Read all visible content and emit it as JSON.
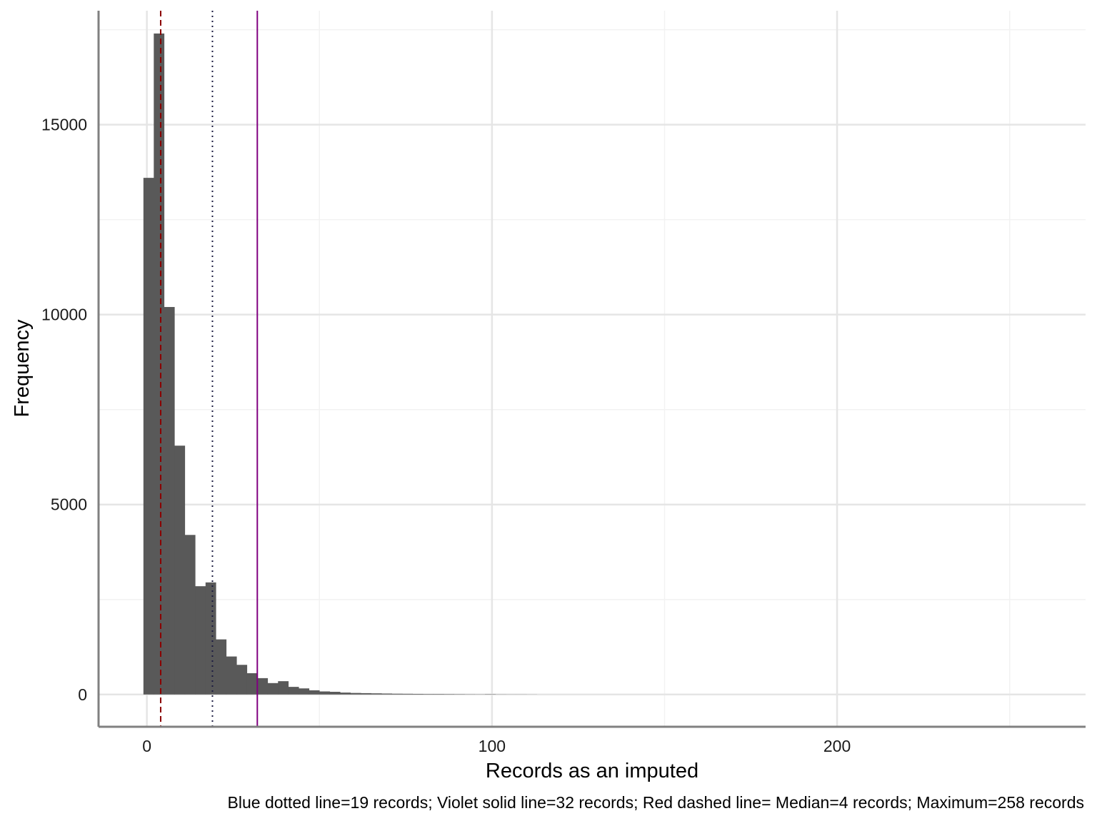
{
  "chart_data": {
    "type": "bar",
    "subtype": "histogram",
    "title": "",
    "xlabel": "Records as an imputed",
    "ylabel": "Frequency",
    "caption": "Blue dotted line=19 records; Violet solid line=32 records; Red dashed line= Median=4 records; Maximum=258 records",
    "xlim": [
      -14,
      272
    ],
    "ylim": [
      -850,
      18000
    ],
    "x_ticks": [
      0,
      100,
      200
    ],
    "x_tick_labels": [
      "0",
      "100",
      "200"
    ],
    "y_ticks": [
      0,
      5000,
      10000,
      15000
    ],
    "y_tick_labels": [
      "0",
      "5000",
      "10000",
      "15000"
    ],
    "x_minor_grid": [
      50,
      150,
      250
    ],
    "y_minor_grid": [
      2500,
      7500,
      12500,
      17500
    ],
    "grid": true,
    "bin_width": 3,
    "bins": [
      {
        "x0": -1,
        "x1": 2,
        "count": 13600
      },
      {
        "x0": 2,
        "x1": 5,
        "count": 17400
      },
      {
        "x0": 5,
        "x1": 8,
        "count": 10200
      },
      {
        "x0": 8,
        "x1": 11,
        "count": 6550
      },
      {
        "x0": 11,
        "x1": 14,
        "count": 4200
      },
      {
        "x0": 14,
        "x1": 17,
        "count": 2850
      },
      {
        "x0": 17,
        "x1": 20,
        "count": 2950
      },
      {
        "x0": 20,
        "x1": 23,
        "count": 1450
      },
      {
        "x0": 23,
        "x1": 26,
        "count": 1000
      },
      {
        "x0": 26,
        "x1": 29,
        "count": 780
      },
      {
        "x0": 29,
        "x1": 32,
        "count": 560
      },
      {
        "x0": 32,
        "x1": 35,
        "count": 430
      },
      {
        "x0": 35,
        "x1": 38,
        "count": 300
      },
      {
        "x0": 38,
        "x1": 41,
        "count": 350
      },
      {
        "x0": 41,
        "x1": 44,
        "count": 200
      },
      {
        "x0": 44,
        "x1": 47,
        "count": 160
      },
      {
        "x0": 47,
        "x1": 50,
        "count": 110
      },
      {
        "x0": 50,
        "x1": 53,
        "count": 80
      },
      {
        "x0": 53,
        "x1": 56,
        "count": 70
      },
      {
        "x0": 56,
        "x1": 59,
        "count": 50
      },
      {
        "x0": 59,
        "x1": 62,
        "count": 40
      },
      {
        "x0": 62,
        "x1": 65,
        "count": 35
      },
      {
        "x0": 65,
        "x1": 68,
        "count": 30
      },
      {
        "x0": 68,
        "x1": 71,
        "count": 25
      },
      {
        "x0": 71,
        "x1": 74,
        "count": 20
      },
      {
        "x0": 74,
        "x1": 77,
        "count": 18
      },
      {
        "x0": 77,
        "x1": 80,
        "count": 15
      },
      {
        "x0": 80,
        "x1": 83,
        "count": 12
      },
      {
        "x0": 83,
        "x1": 86,
        "count": 12
      },
      {
        "x0": 86,
        "x1": 89,
        "count": 10
      },
      {
        "x0": 89,
        "x1": 92,
        "count": 8
      },
      {
        "x0": 92,
        "x1": 95,
        "count": 6
      },
      {
        "x0": 95,
        "x1": 98,
        "count": 5
      },
      {
        "x0": 98,
        "x1": 101,
        "count": 8
      },
      {
        "x0": 101,
        "x1": 104,
        "count": 4
      },
      {
        "x0": 104,
        "x1": 107,
        "count": 3
      },
      {
        "x0": 107,
        "x1": 110,
        "count": 3
      },
      {
        "x0": 110,
        "x1": 113,
        "count": 2
      }
    ],
    "reference_lines": [
      {
        "x": 4,
        "style": "dashed",
        "color": "#8b0000"
      },
      {
        "x": 19,
        "style": "dotted",
        "color": "#1a1a40"
      },
      {
        "x": 32,
        "style": "solid",
        "color": "#800080"
      }
    ],
    "colors": {
      "bar_fill": "#595959",
      "grid_major": "#e5e5e5",
      "grid_minor": "#f2f2f2",
      "axis": "#808080",
      "text": "#1a1a1a"
    }
  }
}
